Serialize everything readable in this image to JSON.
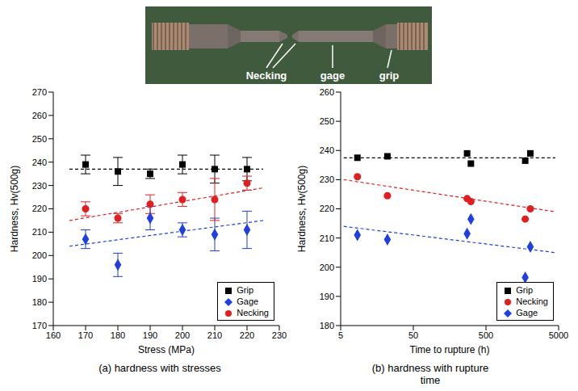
{
  "photo": {
    "labels": [
      "Necking",
      "gage",
      "grip"
    ]
  },
  "chart_data": [
    {
      "type": "scatter",
      "title": "(a) hardness with stresses",
      "x_label": "Stress (MPa)",
      "y_label": "Hardness, Hv(500g)",
      "xlim": [
        160,
        230
      ],
      "xticks": [
        160,
        170,
        180,
        190,
        200,
        210,
        220,
        230
      ],
      "ylim": [
        170,
        270
      ],
      "yticks": [
        170,
        180,
        190,
        200,
        210,
        220,
        230,
        240,
        250,
        260,
        270
      ],
      "legend": "lower right",
      "series": [
        {
          "name": "Grip",
          "color": "#000000",
          "marker": "square",
          "x": [
            170,
            180,
            190,
            200,
            210,
            220
          ],
          "values": [
            239,
            236,
            235,
            239,
            237,
            237
          ],
          "errors": [
            4,
            6,
            2,
            4,
            6,
            5
          ],
          "trend_x": [
            165,
            225
          ],
          "trend": [
            237,
            237
          ]
        },
        {
          "name": "Gage",
          "color": "#1f3fe0",
          "marker": "diamond",
          "x": [
            170,
            180,
            190,
            200,
            210,
            220
          ],
          "values": [
            207,
            196,
            216,
            211,
            209,
            211
          ],
          "errors": [
            4,
            5,
            5,
            3,
            7,
            8
          ],
          "trend_x": [
            165,
            225
          ],
          "trend": [
            204,
            215
          ]
        },
        {
          "name": "Necking",
          "color": "#e02020",
          "marker": "circle",
          "x": [
            170,
            180,
            190,
            200,
            210,
            220
          ],
          "values": [
            220,
            216,
            222,
            224,
            224,
            231
          ],
          "errors": [
            3,
            2,
            4,
            3,
            9,
            3
          ],
          "trend_x": [
            165,
            225
          ],
          "trend": [
            215,
            229
          ]
        }
      ]
    },
    {
      "type": "scatter",
      "title": "(b) hardness with rupture time",
      "x_label": "Time to rupture (h)",
      "y_label": "Hardness, Hv(500g)",
      "log": "x",
      "xlim": [
        5,
        5000
      ],
      "xticks": [
        5,
        50,
        500,
        5000
      ],
      "ylim": [
        180,
        260
      ],
      "yticks": [
        180,
        190,
        200,
        210,
        220,
        230,
        240,
        250,
        260
      ],
      "legend": "lower right",
      "series": [
        {
          "name": "Grip",
          "color": "#000000",
          "marker": "square",
          "x": [
            8.5,
            22,
            275,
            310,
            1735,
            2040
          ],
          "values": [
            237.5,
            238,
            239,
            235.5,
            236.5,
            239
          ],
          "trend_x": [
            5.5,
            4500
          ],
          "trend": [
            237.5,
            237.5
          ]
        },
        {
          "name": "Necking",
          "color": "#e02020",
          "marker": "circle",
          "x": [
            8.5,
            22,
            275,
            310,
            1735,
            2040
          ],
          "values": [
            231,
            224.5,
            223.5,
            222.5,
            216.5,
            220
          ],
          "trend_x": [
            5.5,
            4500
          ],
          "trend": [
            230,
            219
          ]
        },
        {
          "name": "Gage",
          "color": "#1f3fe0",
          "marker": "diamond",
          "x": [
            8.5,
            22,
            275,
            310,
            1735,
            2040
          ],
          "values": [
            211,
            209.5,
            211.5,
            216.5,
            196.5,
            207
          ],
          "trend_x": [
            5.5,
            4500
          ],
          "trend": [
            214,
            205
          ]
        }
      ]
    }
  ]
}
